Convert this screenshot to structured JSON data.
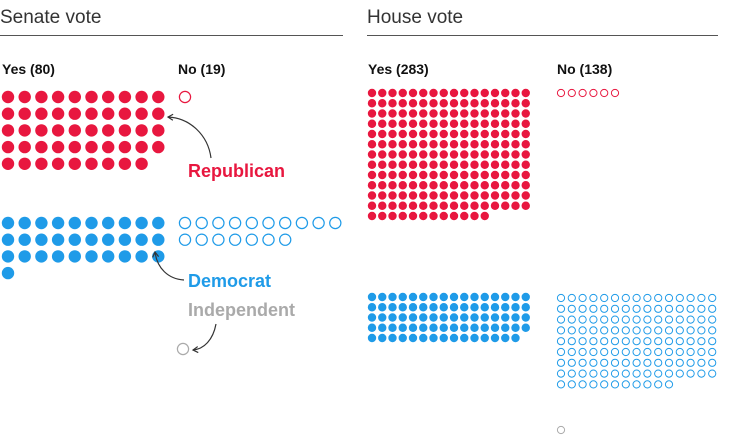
{
  "chart_data": [
    {
      "type": "dot-grid",
      "title": "Senate vote",
      "categories": [
        "Yes (80)",
        "No (19)"
      ],
      "series": [
        {
          "name": "Republican",
          "values": [
            49,
            1
          ]
        },
        {
          "name": "Democrat",
          "values": [
            31,
            17
          ]
        },
        {
          "name": "Independent",
          "values": [
            0,
            1
          ]
        }
      ],
      "totals": {
        "yes": 80,
        "no": 19
      }
    },
    {
      "type": "dot-grid",
      "title": "House vote",
      "categories": [
        "Yes (283)",
        "No (138)"
      ],
      "series": [
        {
          "name": "Republican",
          "values": [
            204,
            6
          ]
        },
        {
          "name": "Democrat",
          "values": [
            79,
            131
          ]
        },
        {
          "name": "Independent",
          "values": [
            0,
            1
          ]
        }
      ],
      "totals": {
        "yes": 283,
        "no": 138
      }
    }
  ],
  "labels": {
    "republican": "Republican",
    "democrat": "Democrat",
    "independent": "Independent"
  },
  "colors": {
    "republican": "#e8173f",
    "democrat": "#1f9be8",
    "independent": "#aaaaaa",
    "rule": "#555555"
  },
  "legend": "annotations with arrows"
}
